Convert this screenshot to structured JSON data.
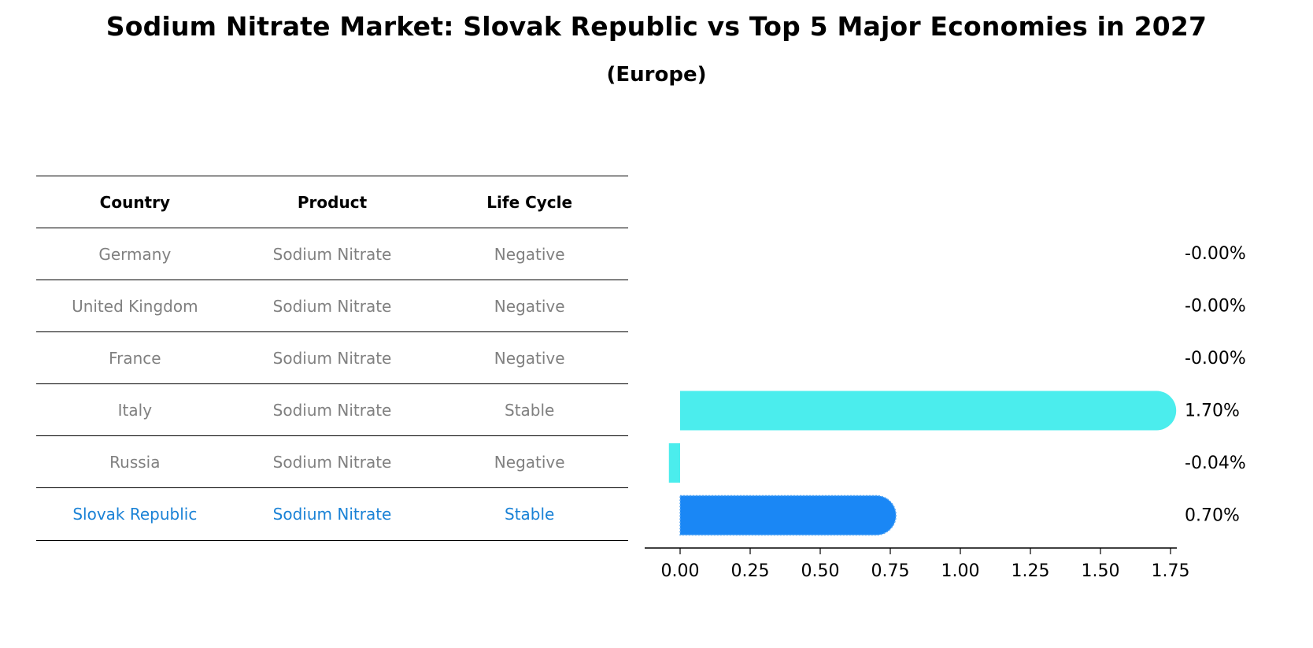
{
  "title": "Sodium Nitrate Market: Slovak Republic vs Top 5 Major Economies in 2027",
  "subtitle": "(Europe)",
  "table": {
    "headers": [
      "Country",
      "Product",
      "Life Cycle"
    ],
    "rows": [
      {
        "country": "Germany",
        "product": "Sodium Nitrate",
        "life_cycle": "Negative"
      },
      {
        "country": "United Kingdom",
        "product": "Sodium Nitrate",
        "life_cycle": "Negative"
      },
      {
        "country": "France",
        "product": "Sodium Nitrate",
        "life_cycle": "Negative"
      },
      {
        "country": "Italy",
        "product": "Sodium Nitrate",
        "life_cycle": "Stable"
      },
      {
        "country": "Russia",
        "product": "Sodium Nitrate",
        "life_cycle": "Negative"
      },
      {
        "country": "Slovak Republic",
        "product": "Sodium Nitrate",
        "life_cycle": "Stable"
      }
    ]
  },
  "colors": {
    "bar": "#4beded",
    "highlight_bar": "#1a87f5",
    "highlight_text": "#1a82d6",
    "row_text": "#808080"
  },
  "chart_data": {
    "type": "bar",
    "orientation": "horizontal",
    "categories": [
      "Germany",
      "United Kingdom",
      "France",
      "Italy",
      "Russia",
      "Slovak Republic"
    ],
    "values": [
      -0.0,
      -0.0,
      -0.0,
      1.7,
      -0.04,
      0.7
    ],
    "value_labels": [
      "-0.00%",
      "-0.00%",
      "-0.00%",
      "1.70%",
      "-0.04%",
      "0.70%"
    ],
    "highlight": "Slovak Republic",
    "xlim": [
      -0.13,
      1.78
    ],
    "xticks": [
      0.0,
      0.25,
      0.5,
      0.75,
      1.0,
      1.25,
      1.5,
      1.75
    ],
    "xtick_labels": [
      "0.00",
      "0.25",
      "0.50",
      "0.75",
      "1.00",
      "1.25",
      "1.50",
      "1.75"
    ]
  }
}
